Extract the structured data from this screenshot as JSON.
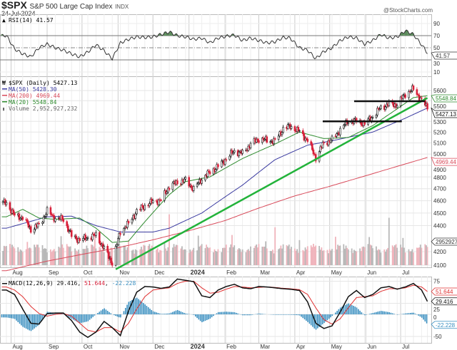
{
  "header": {
    "symbol": "$SPX",
    "name": "S&P 500 Large Cap Index",
    "exchange": "INDX",
    "date": "24-Jul-2024",
    "brand": "@StockCharts.com"
  },
  "legend": {
    "rsi": "RSI(14) 41.57",
    "price": "$SPX (Daily) 5427.13",
    "ma50": "MA(50) 5428.30",
    "ma200": "MA(200) 4969.44",
    "ma20": "MA(20) 5548.84",
    "volume": "Volume 2,952,927,232",
    "macd_name": "MACD(12,26,9)",
    "macd_vals": [
      "29.416",
      "51.644",
      "-22.228"
    ]
  },
  "tags": {
    "rsi": "41.57",
    "ma20": "5548.84",
    "price": "5427.13",
    "ma200": "4969.44",
    "volume": "2952927",
    "signal": "51.644",
    "macd": "29.416",
    "hist": "-22.228"
  },
  "colors": {
    "ma50": "#3a3aa0",
    "ma200": "#d84a5a",
    "ma20": "#2e8b2e",
    "trendline": "#22b33a",
    "down": "#d8203a",
    "hist": "#3a8fc0",
    "rsi_fill": "#5a8a5a"
  },
  "chart_data": {
    "type": "candlestick",
    "scale": "log",
    "grid": true,
    "x_ticks": [
      {
        "date": "2023-08-01",
        "label": "Aug"
      },
      {
        "date": "2023-09-01",
        "label": "Sep"
      },
      {
        "date": "2023-10-01",
        "label": "Oct"
      },
      {
        "date": "2023-11-01",
        "label": "Nov"
      },
      {
        "date": "2023-12-01",
        "label": "Dec"
      },
      {
        "date": "2024-01-01",
        "label": "2024"
      },
      {
        "date": "2024-02-01",
        "label": "Feb"
      },
      {
        "date": "2024-03-01",
        "label": "Mar"
      },
      {
        "date": "2024-04-01",
        "label": "Apr"
      },
      {
        "date": "2024-05-01",
        "label": "May"
      },
      {
        "date": "2024-06-01",
        "label": "Jun"
      },
      {
        "date": "2024-07-01",
        "label": "Jul"
      }
    ],
    "price_ticks": [
      5600,
      5500,
      5300,
      5200,
      5100,
      5000,
      4900,
      4800,
      4700,
      4600,
      4500,
      4400,
      4200,
      4100
    ],
    "rsi_ticks": [
      90,
      70,
      50,
      30,
      10
    ],
    "macd_ticks": [
      75,
      25,
      0,
      -50
    ],
    "weeks": [
      "2023-07-28",
      "2023-08-04",
      "2023-08-11",
      "2023-08-18",
      "2023-08-25",
      "2023-09-01",
      "2023-09-08",
      "2023-09-15",
      "2023-09-22",
      "2023-09-29",
      "2023-10-06",
      "2023-10-13",
      "2023-10-20",
      "2023-10-27",
      "2023-11-03",
      "2023-11-10",
      "2023-11-17",
      "2023-11-24",
      "2023-12-01",
      "2023-12-08",
      "2023-12-15",
      "2023-12-22",
      "2023-12-29",
      "2024-01-05",
      "2024-01-12",
      "2024-01-19",
      "2024-01-26",
      "2024-02-02",
      "2024-02-09",
      "2024-02-16",
      "2024-02-23",
      "2024-03-01",
      "2024-03-08",
      "2024-03-15",
      "2024-03-22",
      "2024-03-28",
      "2024-04-05",
      "2024-04-12",
      "2024-04-19",
      "2024-04-26",
      "2024-05-03",
      "2024-05-10",
      "2024-05-17",
      "2024-05-24",
      "2024-05-31",
      "2024-06-07",
      "2024-06-14",
      "2024-06-21",
      "2024-06-28",
      "2024-07-05",
      "2024-07-12",
      "2024-07-19",
      "2024-07-24"
    ],
    "close": [
      4582,
      4478,
      4464,
      4370,
      4405,
      4515,
      4457,
      4450,
      4320,
      4288,
      4308,
      4327,
      4224,
      4117,
      4358,
      4415,
      4514,
      4559,
      4594,
      4604,
      4719,
      4755,
      4770,
      4697,
      4784,
      4840,
      4891,
      4959,
      5027,
      5006,
      5089,
      5137,
      5124,
      5117,
      5234,
      5254,
      5204,
      5123,
      4967,
      5100,
      5128,
      5223,
      5303,
      5305,
      5278,
      5347,
      5432,
      5465,
      5460,
      5567,
      5615,
      5505,
      5427.13
    ],
    "rsi": [
      70,
      48,
      40,
      35,
      50,
      56,
      50,
      46,
      40,
      35,
      43,
      55,
      45,
      32,
      58,
      64,
      68,
      67,
      68,
      72,
      76,
      70,
      68,
      64,
      66,
      58,
      66,
      69,
      71,
      62,
      66,
      62,
      58,
      60,
      67,
      66,
      50,
      46,
      32,
      44,
      50,
      62,
      68,
      66,
      56,
      62,
      72,
      66,
      68,
      78,
      72,
      55,
      41.57
    ],
    "macd": [
      55,
      45,
      12,
      -20,
      -22,
      2,
      3,
      3,
      -14,
      -40,
      -52,
      -40,
      -16,
      -30,
      -48,
      8,
      50,
      63,
      62,
      59,
      62,
      80,
      77,
      74,
      42,
      38,
      55,
      63,
      68,
      60,
      58,
      63,
      62,
      60,
      58,
      57,
      54,
      28,
      -20,
      -32,
      -26,
      5,
      40,
      54,
      38,
      45,
      60,
      63,
      57,
      62,
      70,
      55,
      29.416
    ],
    "signal": [
      62,
      55,
      40,
      18,
      2,
      -4,
      0,
      2,
      -4,
      -20,
      -36,
      -40,
      -30,
      -30,
      -40,
      -20,
      12,
      40,
      55,
      58,
      60,
      70,
      75,
      75,
      60,
      48,
      50,
      57,
      63,
      62,
      60,
      61,
      62,
      61,
      59,
      58,
      56,
      45,
      15,
      -12,
      -22,
      -10,
      15,
      38,
      40,
      42,
      52,
      58,
      58,
      60,
      66,
      62,
      51.644
    ],
    "ma200": [
      [
        "2023-07-28",
        4060
      ],
      [
        "2023-09-01",
        4130
      ],
      [
        "2023-10-01",
        4180
      ],
      [
        "2023-11-01",
        4230
      ],
      [
        "2023-12-01",
        4290
      ],
      [
        "2024-01-01",
        4360
      ],
      [
        "2024-02-01",
        4440
      ],
      [
        "2024-03-01",
        4540
      ],
      [
        "2024-04-01",
        4640
      ],
      [
        "2024-05-01",
        4720
      ],
      [
        "2024-06-01",
        4810
      ],
      [
        "2024-07-01",
        4900
      ],
      [
        "2024-07-24",
        4969.44
      ]
    ],
    "ma50": [
      [
        "2023-07-28",
        4380
      ],
      [
        "2023-09-01",
        4470
      ],
      [
        "2023-09-22",
        4475
      ],
      [
        "2023-10-13",
        4400
      ],
      [
        "2023-11-03",
        4350
      ],
      [
        "2023-12-01",
        4350
      ],
      [
        "2023-12-15",
        4380
      ],
      [
        "2024-01-12",
        4500
      ],
      [
        "2024-02-16",
        4730
      ],
      [
        "2024-03-15",
        4950
      ],
      [
        "2024-04-12",
        5080
      ],
      [
        "2024-05-03",
        5120
      ],
      [
        "2024-06-07",
        5200
      ],
      [
        "2024-07-05",
        5330
      ],
      [
        "2024-07-24",
        5428.3
      ]
    ],
    "ma20": [
      [
        "2023-07-28",
        4470
      ],
      [
        "2023-08-11",
        4530
      ],
      [
        "2023-08-25",
        4460
      ],
      [
        "2023-09-08",
        4450
      ],
      [
        "2023-09-29",
        4460
      ],
      [
        "2023-10-13",
        4380
      ],
      [
        "2023-10-27",
        4270
      ],
      [
        "2023-11-10",
        4280
      ],
      [
        "2023-11-24",
        4430
      ],
      [
        "2023-12-15",
        4650
      ],
      [
        "2023-12-29",
        4760
      ],
      [
        "2024-01-19",
        4800
      ],
      [
        "2024-02-16",
        4960
      ],
      [
        "2024-03-15",
        5090
      ],
      [
        "2024-04-05",
        5200
      ],
      [
        "2024-04-26",
        5140
      ],
      [
        "2024-05-17",
        5150
      ],
      [
        "2024-06-07",
        5260
      ],
      [
        "2024-06-28",
        5420
      ],
      [
        "2024-07-12",
        5530
      ],
      [
        "2024-07-24",
        5548.84
      ]
    ],
    "annotations": [
      {
        "type": "trendline",
        "from": [
          "2023-10-30",
          4070
        ],
        "to": [
          "2024-07-24",
          5527
        ]
      },
      {
        "type": "horizontal",
        "value": 5300,
        "from": "2024-04-25",
        "to": "2024-07-02"
      },
      {
        "type": "horizontal",
        "value": 5494,
        "from": "2024-05-22",
        "to": "2024-07-22"
      }
    ]
  }
}
